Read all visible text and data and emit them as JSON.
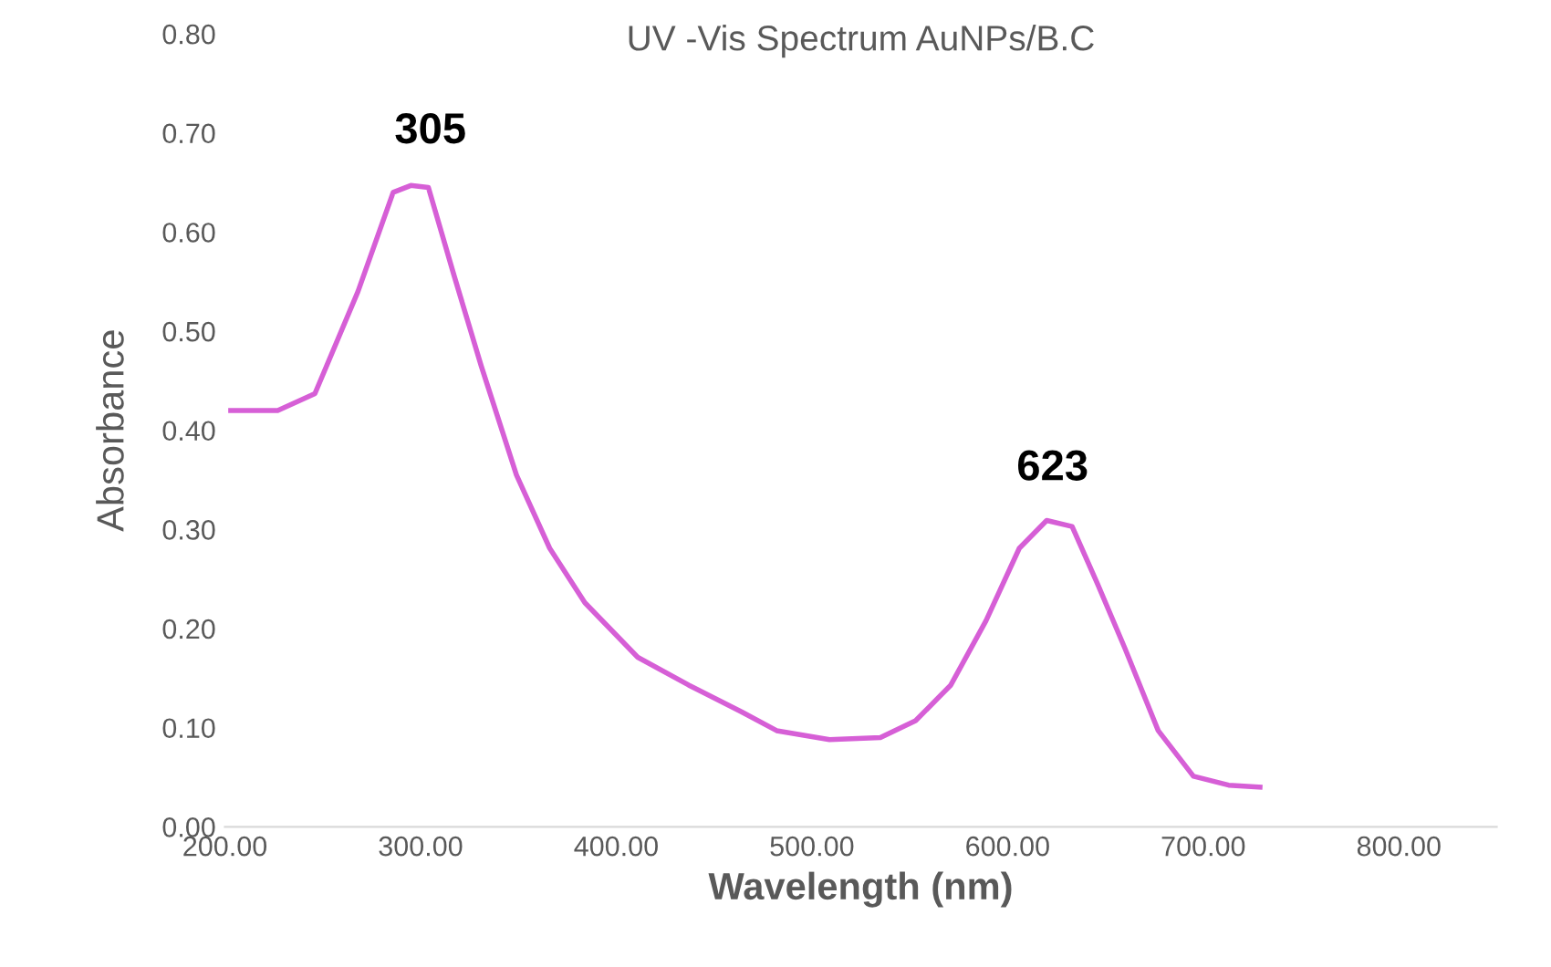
{
  "chart_data": {
    "type": "line",
    "title": "UV -Vis Spectrum AuNPs/B.C",
    "xlabel": "Wavelength (nm)",
    "ylabel": "Absorbance",
    "x": [
      203,
      227,
      246,
      268,
      286,
      295,
      304,
      317,
      331,
      349,
      366,
      384,
      411,
      437,
      464,
      482,
      509,
      535,
      553,
      571,
      589,
      606,
      620,
      633,
      646,
      660,
      677,
      695,
      713,
      729
    ],
    "series": [
      {
        "color": "#d65fd6",
        "values": [
          0.42,
          0.42,
          0.437,
          0.54,
          0.64,
          0.647,
          0.645,
          0.557,
          0.465,
          0.355,
          0.281,
          0.226,
          0.171,
          0.143,
          0.116,
          0.097,
          0.088,
          0.09,
          0.107,
          0.143,
          0.208,
          0.281,
          0.309,
          0.303,
          0.245,
          0.18,
          0.097,
          0.051,
          0.042,
          0.04
        ]
      }
    ],
    "xlim": [
      200,
      850
    ],
    "ylim": [
      0,
      0.8
    ],
    "xticks": [
      {
        "value": 200,
        "label": "200.00"
      },
      {
        "value": 300,
        "label": "300.00"
      },
      {
        "value": 400,
        "label": "400.00"
      },
      {
        "value": 500,
        "label": "500.00"
      },
      {
        "value": 600,
        "label": "600.00"
      },
      {
        "value": 700,
        "label": "700.00"
      },
      {
        "value": 800,
        "label": "800.00"
      }
    ],
    "yticks": [
      {
        "value": 0,
        "label": "0.00"
      },
      {
        "value": 0.1,
        "label": "0.10"
      },
      {
        "value": 0.2,
        "label": "0.20"
      },
      {
        "value": 0.3,
        "label": "0.30"
      },
      {
        "value": 0.4,
        "label": "0.40"
      },
      {
        "value": 0.5,
        "label": "0.50"
      },
      {
        "value": 0.6,
        "label": "0.60"
      },
      {
        "value": 0.7,
        "label": "0.70"
      },
      {
        "value": 0.8,
        "label": "0.80"
      }
    ],
    "annotations": [
      {
        "text": "305",
        "x": 305,
        "y": 0.65
      },
      {
        "text": "623",
        "x": 623,
        "y": 0.31
      }
    ],
    "grid": false,
    "marker": "none",
    "line_style": "solid"
  }
}
